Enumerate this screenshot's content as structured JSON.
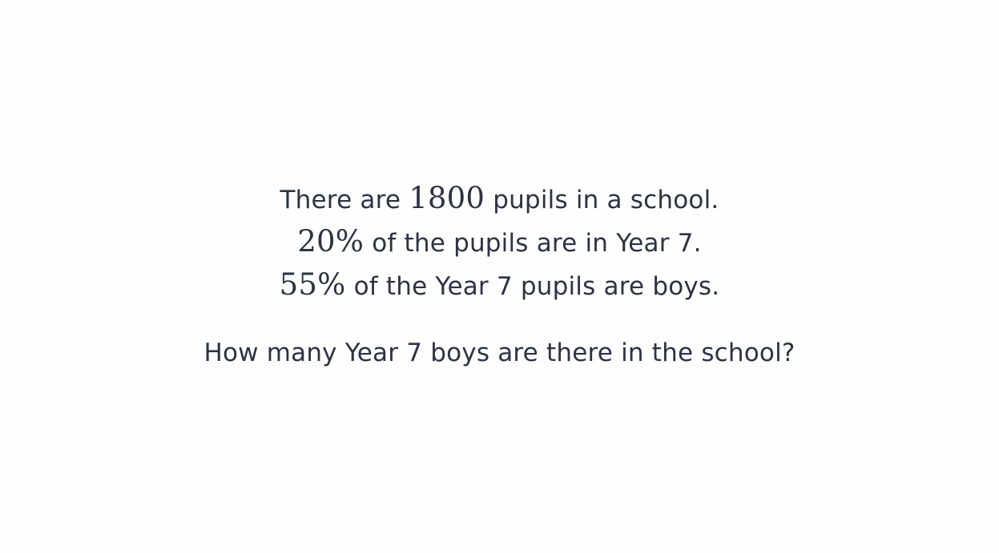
{
  "problem": {
    "lines": [
      {
        "before": "There are ",
        "math": "1800",
        "after": " pupils in a school."
      },
      {
        "before": "",
        "math": "20%",
        "after": " of the pupils are in Year 7."
      },
      {
        "before": "",
        "math": "55%",
        "after": " of the Year 7 pupils are boys."
      }
    ],
    "question": "How many Year 7 boys are there in the school?"
  },
  "colors": {
    "text": "#2b3344",
    "background": "#fefefe"
  }
}
